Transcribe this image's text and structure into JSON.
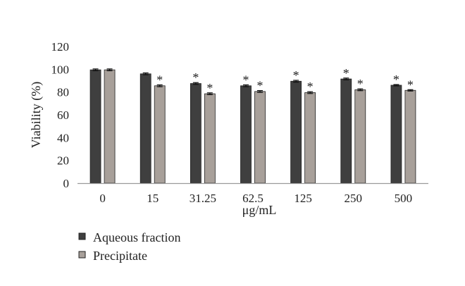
{
  "chart_data": {
    "type": "bar",
    "title": "",
    "xlabel": "μg/mL",
    "ylabel": "Viability (%)",
    "ylim": [
      0,
      120
    ],
    "yticks": [
      0,
      20,
      40,
      60,
      80,
      100,
      120
    ],
    "grid": false,
    "legend_position": "bottom-left",
    "categories": [
      "0",
      "15",
      "31.25",
      "62.5",
      "125",
      "250",
      "500"
    ],
    "series": [
      {
        "name": "Aqueous fraction",
        "color": "#3f3f3f",
        "values": [
          99.5,
          96,
          87.5,
          85.5,
          89.5,
          91.5,
          86
        ],
        "errors": [
          0.8,
          0.8,
          0.8,
          0.8,
          0.8,
          0.8,
          0.6
        ],
        "significance": [
          "",
          "",
          "*",
          "*",
          "*",
          "*",
          "*"
        ]
      },
      {
        "name": "Precipitate",
        "color": "#a8a09a",
        "values": [
          99.5,
          85.5,
          78.5,
          80.5,
          79.5,
          82,
          81.5
        ],
        "errors": [
          0.8,
          0.8,
          0.8,
          0.8,
          0.8,
          0.8,
          0.6
        ],
        "significance": [
          "",
          "*",
          "*",
          "*",
          "*",
          "*",
          "*"
        ]
      }
    ]
  }
}
